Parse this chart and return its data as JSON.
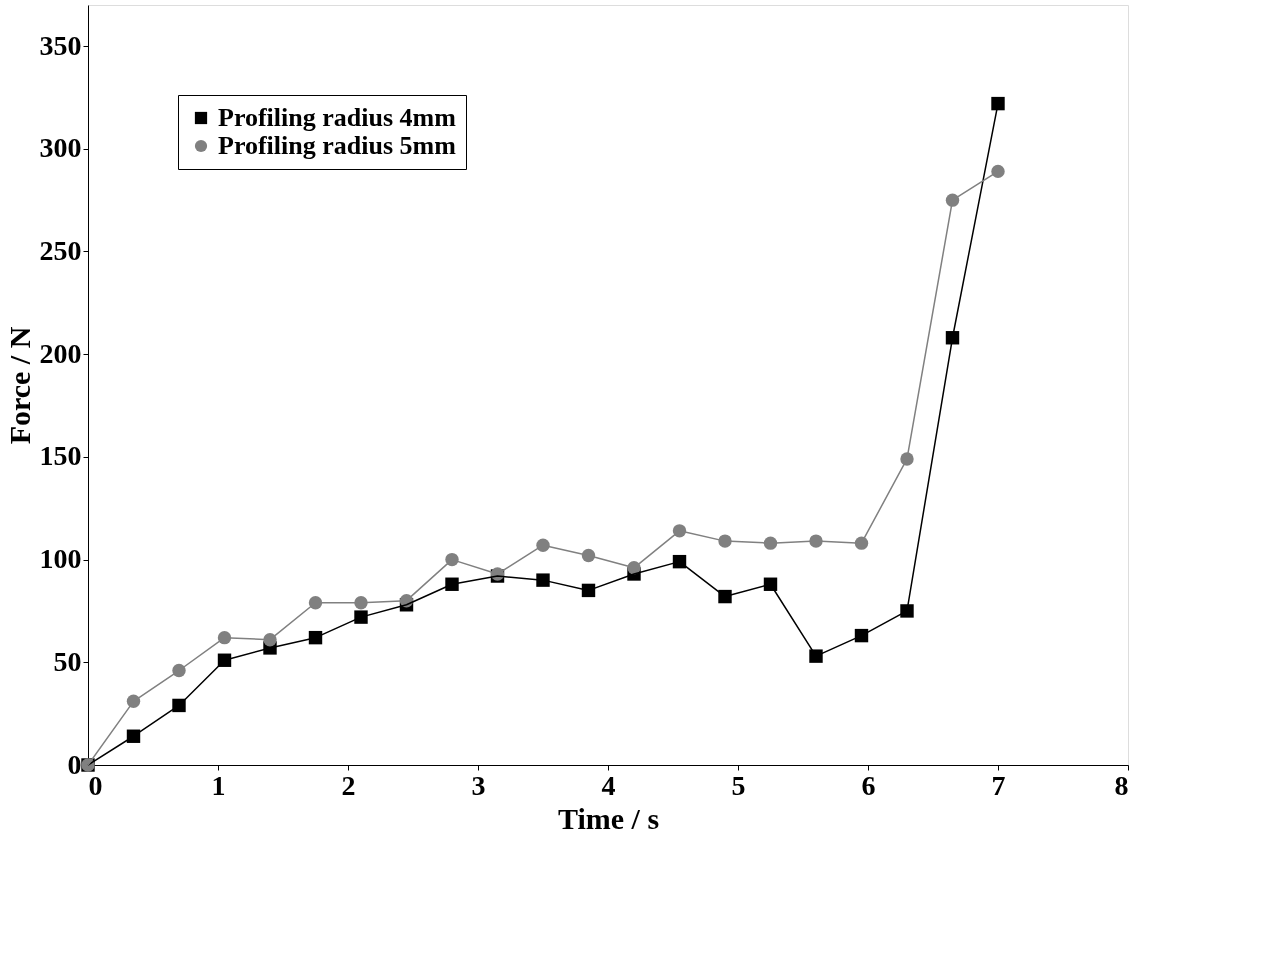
{
  "chart_data": {
    "type": "line",
    "xlabel": "Time / s",
    "ylabel": "Force / N",
    "x": [
      0,
      0.35,
      0.7,
      1.05,
      1.4,
      1.75,
      2.1,
      2.45,
      2.8,
      3.15,
      3.5,
      3.85,
      4.2,
      4.55,
      4.9,
      5.25,
      5.6,
      5.95,
      6.3,
      6.65,
      7.0
    ],
    "series": [
      {
        "name": "Profiling radius 4mm",
        "color": "#000000",
        "marker": "square",
        "values": [
          0,
          14,
          29,
          51,
          57,
          62,
          72,
          78,
          88,
          92,
          90,
          85,
          93,
          99,
          82,
          88,
          53,
          63,
          75,
          208,
          322
        ]
      },
      {
        "name": "Profiling radius 5mm",
        "color": "#808080",
        "marker": "circle",
        "values": [
          0,
          31,
          46,
          62,
          61,
          79,
          79,
          80,
          100,
          93,
          107,
          102,
          96,
          114,
          109,
          108,
          109,
          108,
          149,
          275,
          289
        ]
      }
    ],
    "xlim": [
      0,
      8
    ],
    "xticks": [
      0,
      1,
      2,
      3,
      4,
      5,
      6,
      7,
      8
    ],
    "ylim": [
      0,
      370
    ],
    "yticks": [
      0,
      50,
      100,
      150,
      200,
      250,
      300,
      350
    ],
    "grid": false,
    "legend": "top left",
    "line_style": "solid"
  }
}
